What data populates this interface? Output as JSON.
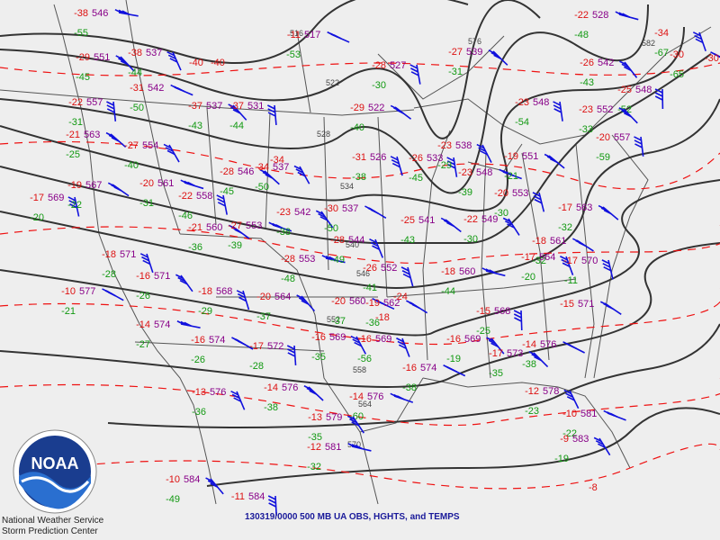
{
  "caption": "130319/0000 500 MB UA OBS, HGHTS, and TEMPS",
  "agency": {
    "logo_text": "NOAA",
    "line1": "National Weather Service",
    "line2": "Storm Prediction Center"
  },
  "colors": {
    "background": "#eeeeee",
    "height_contour": "#333333",
    "temp_contour": "#ee1111",
    "temperature": "#dd1111",
    "dewpoint": "#119911",
    "height": "#880088",
    "wind_barb": "#1111dd",
    "border": "#555555"
  },
  "contour_labels": [
    "516",
    "522",
    "528",
    "534",
    "540",
    "546",
    "552",
    "558",
    "564",
    "570",
    "576",
    "582"
  ],
  "stations": [
    {
      "t": "-38",
      "h": "546",
      "d": "-55"
    },
    {
      "t": "-29",
      "h": "551",
      "d": "-45"
    },
    {
      "t": "-22",
      "h": "557",
      "d": "-31"
    },
    {
      "t": "-21",
      "h": "563",
      "d": "-25"
    },
    {
      "t": "-17",
      "h": "569",
      "d": "-20"
    },
    {
      "t": "-19",
      "h": "567",
      "d": "-22"
    },
    {
      "t": "-18",
      "h": "571",
      "d": "-28"
    },
    {
      "t": "-10",
      "h": "577",
      "d": "-21"
    },
    {
      "t": "-38",
      "h": "537",
      "d": "-44"
    },
    {
      "t": "-31",
      "h": "542",
      "d": "-50"
    },
    {
      "t": "-27",
      "h": "554",
      "d": "-40"
    },
    {
      "t": "-20",
      "h": "561",
      "d": "-31"
    },
    {
      "t": "-16",
      "h": "571",
      "d": "-26"
    },
    {
      "t": "-14",
      "h": "574",
      "d": "-27"
    },
    {
      "t": "-37",
      "h": "537",
      "d": "-43"
    },
    {
      "t": "-37",
      "h": "531",
      "d": "-44"
    },
    {
      "t": "-28",
      "h": "546",
      "d": "-45"
    },
    {
      "t": "-22",
      "h": "558",
      "d": "-46"
    },
    {
      "t": "-21",
      "h": "560",
      "d": "-36"
    },
    {
      "t": "-18",
      "h": "568",
      "d": "-29"
    },
    {
      "t": "-16",
      "h": "574",
      "d": "-26"
    },
    {
      "t": "-13",
      "h": "576",
      "d": "-36"
    },
    {
      "t": "-11",
      "h": "517",
      "d": "-53"
    },
    {
      "t": "-34",
      "h": "537",
      "d": "-50"
    },
    {
      "t": "-27",
      "h": "553",
      "d": "-39"
    },
    {
      "t": "-23",
      "h": "542",
      "d": "-38"
    },
    {
      "t": "-28",
      "h": "553",
      "d": "-48"
    },
    {
      "t": "-20",
      "h": "564",
      "d": "-37"
    },
    {
      "t": "-17",
      "h": "572",
      "d": "-28"
    },
    {
      "t": "-14",
      "h": "576",
      "d": "-38"
    },
    {
      "t": "-28",
      "h": "527",
      "d": "-30"
    },
    {
      "t": "-29",
      "h": "522",
      "d": "-40"
    },
    {
      "t": "-31",
      "h": "526",
      "d": "-38"
    },
    {
      "t": "-30",
      "h": "537",
      "d": "-50"
    },
    {
      "t": "-28",
      "h": "544",
      "d": "-49"
    },
    {
      "t": "-20",
      "h": "560",
      "d": "-37"
    },
    {
      "t": "-16",
      "h": "569",
      "d": "-35"
    },
    {
      "t": "-14",
      "h": "576",
      "d": "-60"
    },
    {
      "t": "-13",
      "h": "579",
      "d": "-35"
    },
    {
      "t": "-12",
      "h": "581",
      "d": "-32"
    },
    {
      "t": "-10",
      "h": "584",
      "d": "-49"
    },
    {
      "t": "-11",
      "h": "584",
      "d": ""
    },
    {
      "t": "-27",
      "h": "539",
      "d": "-31"
    },
    {
      "t": "-26",
      "h": "533",
      "d": "-45"
    },
    {
      "t": "-25",
      "h": "541",
      "d": "-43"
    },
    {
      "t": "-26",
      "h": "552",
      "d": "-41"
    },
    {
      "t": "-19",
      "h": "562",
      "d": "-36"
    },
    {
      "t": "-16",
      "h": "569",
      "d": "-56"
    },
    {
      "t": "-16",
      "h": "574",
      "d": "-38"
    },
    {
      "t": "-23",
      "h": "538",
      "d": "-29"
    },
    {
      "t": "-23",
      "h": "548",
      "d": "-39"
    },
    {
      "t": "-22",
      "h": "549",
      "d": "-30"
    },
    {
      "t": "-18",
      "h": "560",
      "d": "-44"
    },
    {
      "t": "-16",
      "h": "569",
      "d": "-19"
    },
    {
      "t": "-15",
      "h": "568",
      "d": "-25"
    },
    {
      "t": "-17",
      "h": "573",
      "d": "-35"
    },
    {
      "t": "-23",
      "h": "548",
      "d": "-54"
    },
    {
      "t": "-19",
      "h": "551",
      "d": "-21"
    },
    {
      "t": "-20",
      "h": "553",
      "d": "-30"
    },
    {
      "t": "-18",
      "h": "561",
      "d": "-32"
    },
    {
      "t": "-17",
      "h": "564",
      "d": "-20"
    },
    {
      "t": "-14",
      "h": "576",
      "d": "-38"
    },
    {
      "t": "-12",
      "h": "578",
      "d": "-23"
    },
    {
      "t": "-10",
      "h": "581",
      "d": "-22"
    },
    {
      "t": "-9",
      "h": "583",
      "d": "-19"
    },
    {
      "t": "-22",
      "h": "528",
      "d": "-48"
    },
    {
      "t": "-26",
      "h": "542",
      "d": "-43"
    },
    {
      "t": "-25",
      "h": "548",
      "d": "-52"
    },
    {
      "t": "-23",
      "h": "552",
      "d": "-33"
    },
    {
      "t": "-20",
      "h": "557",
      "d": "-59"
    },
    {
      "t": "-17",
      "h": "563",
      "d": "-32"
    },
    {
      "t": "-17",
      "h": "570",
      "d": "-11"
    },
    {
      "t": "-15",
      "h": "571",
      "d": ""
    },
    {
      "t": "-34",
      "h": "",
      "d": "-67"
    },
    {
      "t": "-30",
      "h": "",
      "d": "-65"
    }
  ],
  "extra_temps": [
    "-40",
    "-40",
    "-34",
    "-30",
    "-24",
    "-18",
    "-8"
  ]
}
